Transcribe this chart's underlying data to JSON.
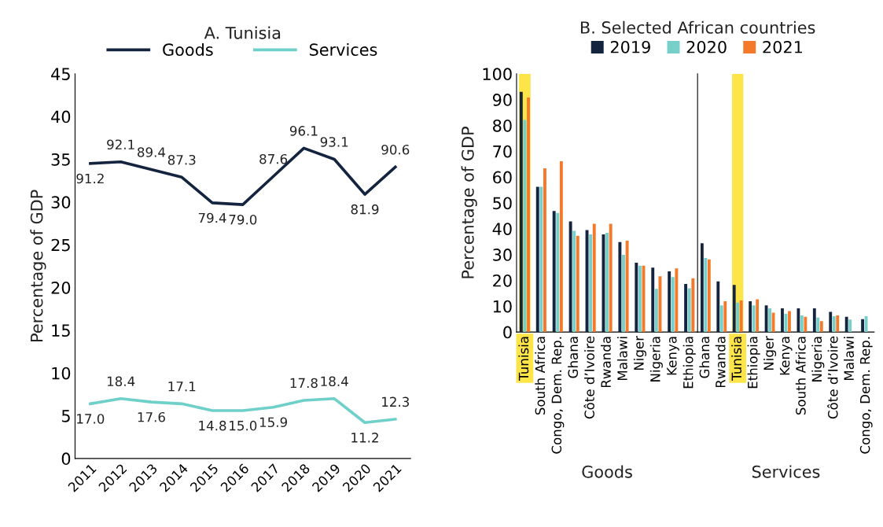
{
  "chart_data": [
    {
      "type": "line",
      "title": "A. Tunisia",
      "ylabel": "Percentage of GDP",
      "legend": "top",
      "marker": "none",
      "line_style": "solid",
      "grid": false,
      "annotations": [
        {
          "text": "91.2",
          "x": "2011",
          "y": 34.5
        },
        {
          "text": "92.1",
          "x": "2012",
          "y": 34.7
        },
        {
          "text": "89.4",
          "x": "2013",
          "y": 33.8
        },
        {
          "text": "87.3",
          "x": "2014",
          "y": 32.9
        },
        {
          "text": "79.4",
          "x": "2015",
          "y": 29.9
        },
        {
          "text": "79.0",
          "x": "2016",
          "y": 29.7
        },
        {
          "text": "87.6",
          "x": "2017",
          "y": 33.0
        },
        {
          "text": "96.1",
          "x": "2018",
          "y": 36.3
        },
        {
          "text": "93.1",
          "x": "2019",
          "y": 35.0
        },
        {
          "text": "81.9",
          "x": "2020",
          "y": 30.9
        },
        {
          "text": "90.6",
          "x": "2021",
          "y": 34.1
        },
        {
          "text": "17.0",
          "x": "2011",
          "y": 6.4
        },
        {
          "text": "18.4",
          "x": "2012",
          "y": 7.0
        },
        {
          "text": "17.6",
          "x": "2013",
          "y": 6.6
        },
        {
          "text": "17.1",
          "x": "2014",
          "y": 6.4
        },
        {
          "text": "14.8",
          "x": "2015",
          "y": 5.6
        },
        {
          "text": "15.0",
          "x": "2016",
          "y": 5.6
        },
        {
          "text": "15.9",
          "x": "2017",
          "y": 6.0
        },
        {
          "text": "17.8",
          "x": "2018",
          "y": 6.8
        },
        {
          "text": "18.4",
          "x": "2019",
          "y": 7.0
        },
        {
          "text": "11.2",
          "x": "2020",
          "y": 4.2
        },
        {
          "text": "12.3",
          "x": "2021",
          "y": 4.6
        }
      ],
      "categories": [
        "2011",
        "2012",
        "2013",
        "2014",
        "2015",
        "2016",
        "2017",
        "2018",
        "2019",
        "2020",
        "2021"
      ],
      "ylim": [
        0,
        45
      ],
      "yticks": [
        0,
        5,
        10,
        15,
        20,
        25,
        30,
        35,
        40,
        45
      ],
      "series": [
        {
          "name": "Goods",
          "color": "#14243f",
          "values": [
            34.5,
            34.7,
            33.8,
            32.9,
            29.9,
            29.7,
            33.0,
            36.3,
            35.0,
            30.9,
            34.1
          ]
        },
        {
          "name": "Services",
          "color": "#6fcfc9",
          "values": [
            6.4,
            7.0,
            6.6,
            6.4,
            5.6,
            5.6,
            6.0,
            6.8,
            7.0,
            4.2,
            4.6
          ]
        }
      ]
    },
    {
      "type": "bar",
      "title": "B. Selected African countries",
      "ylabel": "Percentage of GDP",
      "xlabel": "Goods",
      "legend": "top",
      "grid": false,
      "categories": [
        "Tunisia",
        "South Africa",
        "Congo, Dem. Rep.",
        "Ghana",
        "Côte d’Ivoire",
        "Rwanda",
        "Malawi",
        "Niger",
        "Nigeria",
        "Kenya",
        "Ethiopia"
      ],
      "ylim": [
        0,
        100
      ],
      "yticks": [
        0,
        10,
        20,
        30,
        40,
        50,
        60,
        70,
        80,
        90,
        100
      ],
      "bands": [
        {
          "axis": "x",
          "from": "Tunisia",
          "to": "Tunisia",
          "color": "#fde449"
        }
      ],
      "series": [
        {
          "name": "2019",
          "color": "#14243f",
          "values": [
            93.0,
            56.2,
            46.9,
            42.8,
            39.5,
            37.8,
            34.8,
            26.8,
            24.9,
            23.5,
            18.6
          ]
        },
        {
          "name": "2020",
          "color": "#76cfc9",
          "values": [
            82.1,
            56.2,
            46.1,
            39.2,
            37.8,
            38.4,
            29.9,
            25.7,
            16.7,
            21.3,
            16.9
          ]
        },
        {
          "name": "2021",
          "color": "#f47a2a",
          "values": [
            90.8,
            63.4,
            66.1,
            37.3,
            41.9,
            41.9,
            35.4,
            25.7,
            21.6,
            24.6,
            20.8
          ]
        }
      ]
    },
    {
      "type": "bar",
      "xlabel": "Services",
      "tick_labels": "x",
      "grid": false,
      "categories": [
        "Ghana",
        "Rwanda",
        "Tunisia",
        "Ethiopia",
        "Niger",
        "Kenya",
        "South Africa",
        "Nigeria",
        "Côte d’Ivoire",
        "Malawi",
        "Congo, Dem. Rep."
      ],
      "ylim": [
        0,
        100
      ],
      "bands": [
        {
          "axis": "x",
          "from": "Tunisia",
          "to": "Tunisia",
          "color": "#fde449"
        }
      ],
      "series": [
        {
          "color": "#14243f",
          "values": [
            34.4,
            19.6,
            18.2,
            11.9,
            10.3,
            9.2,
            9.2,
            9.2,
            7.8,
            5.9,
            5.0
          ]
        },
        {
          "color": "#76cfc9",
          "values": [
            28.7,
            10.3,
            11.4,
            10.3,
            9.2,
            7.0,
            6.4,
            5.6,
            6.1,
            4.8,
            6.1
          ]
        },
        {
          "color": "#f47a2a",
          "values": [
            28.1,
            11.9,
            12.2,
            12.7,
            7.5,
            8.1,
            5.9,
            4.2,
            6.4,
            null,
            null
          ]
        }
      ]
    }
  ]
}
